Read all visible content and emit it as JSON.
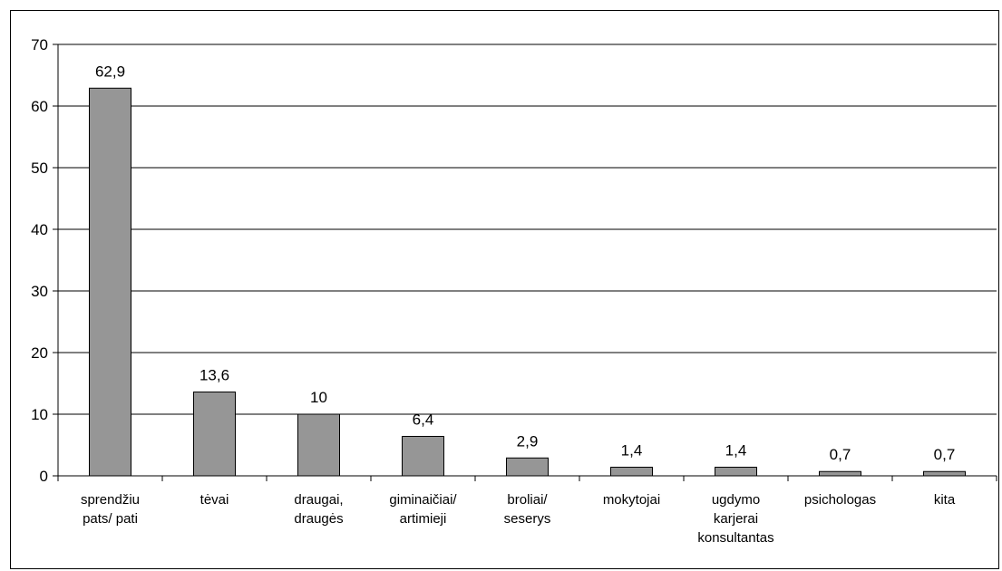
{
  "chart_data": {
    "type": "bar",
    "title": "",
    "xlabel": "",
    "ylabel": "",
    "ylim": [
      0,
      70
    ],
    "yticks": [
      "0",
      "10",
      "20",
      "30",
      "40",
      "50",
      "60",
      "70"
    ],
    "grid": "horizontal",
    "legend": "none",
    "categories": [
      [
        "sprendžiu",
        "pats/ pati"
      ],
      [
        "tėvai"
      ],
      [
        "draugai,",
        "draugės"
      ],
      [
        "giminaičiai/",
        "artimieji"
      ],
      [
        "broliai/",
        "seserys"
      ],
      [
        "mokytojai"
      ],
      [
        "ugdymo",
        "karjerai",
        "konsultantas"
      ],
      [
        "psichologas"
      ],
      [
        "kita"
      ]
    ],
    "values": [
      62.9,
      13.6,
      10,
      6.4,
      2.9,
      1.4,
      1.4,
      0.7,
      0.7
    ],
    "data_labels": [
      "62,9",
      "13,6",
      "10",
      "6,4",
      "2,9",
      "1,4",
      "1,4",
      "0,7",
      "0,7"
    ],
    "colors": {
      "bar": "#969696",
      "bar_stroke": "#000000",
      "grid": "#000000",
      "axis": "#000000"
    }
  }
}
